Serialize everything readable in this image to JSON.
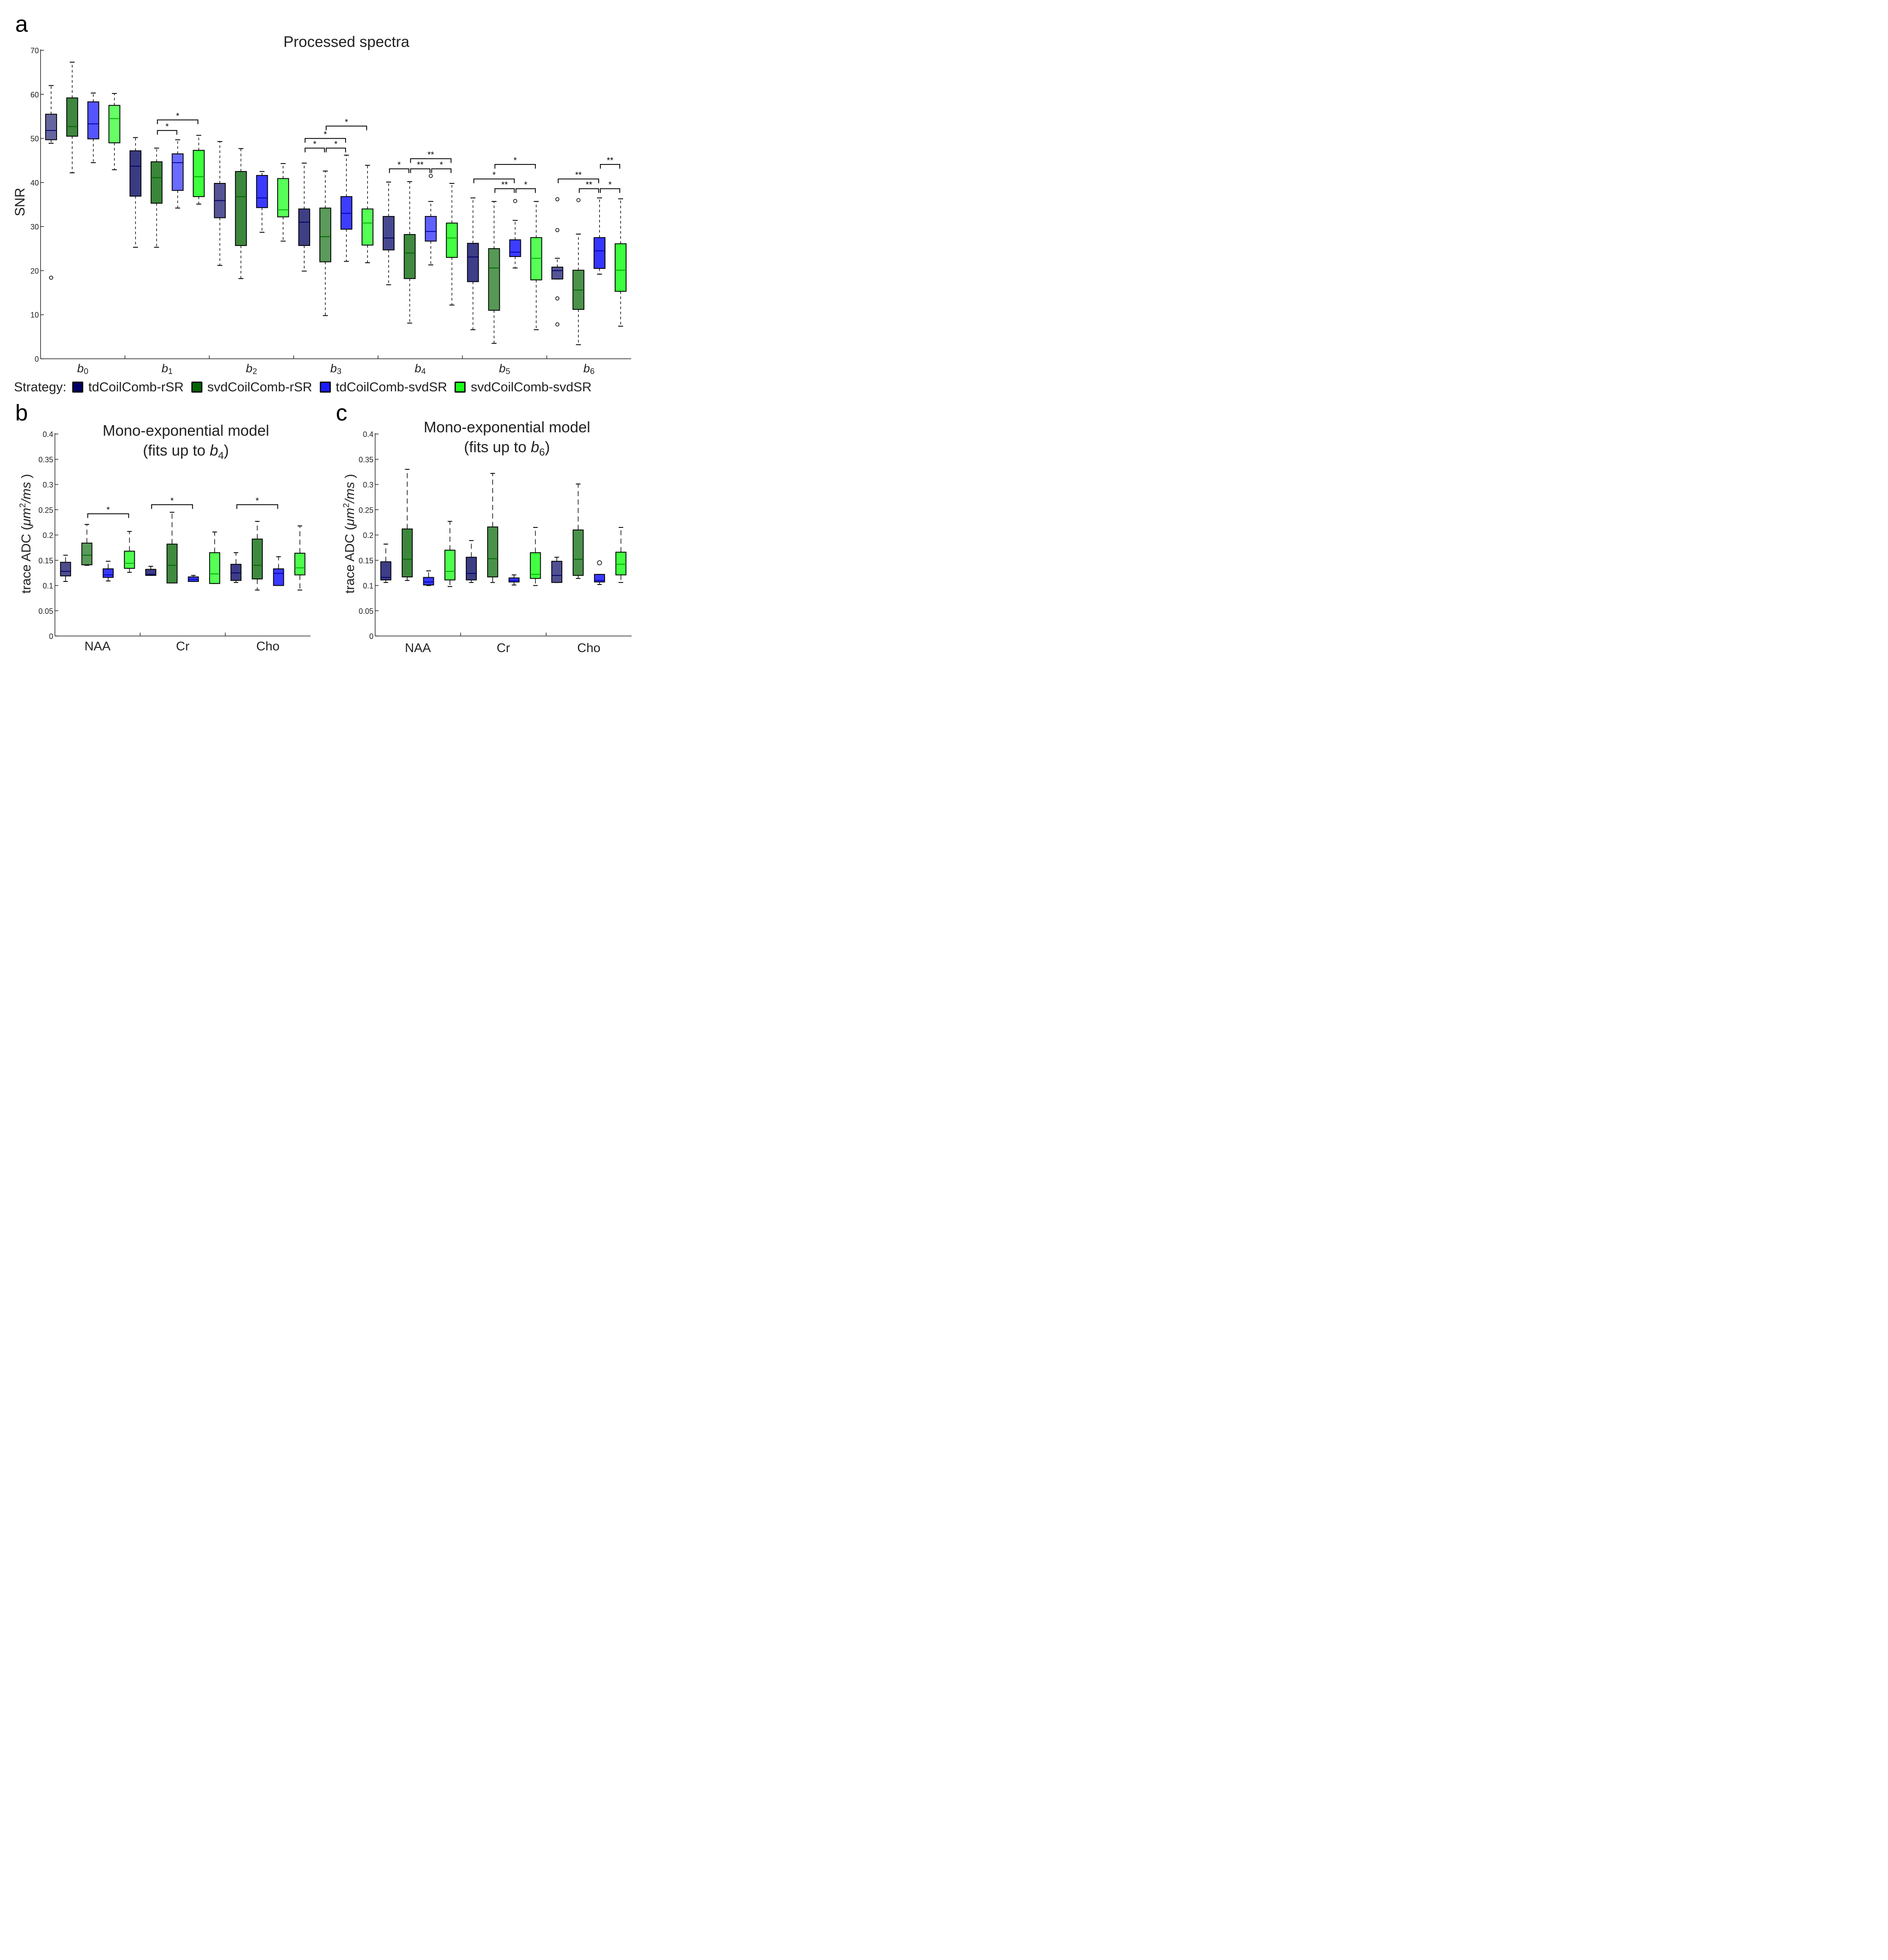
{
  "panels_labels": {
    "a": "a",
    "b": "b",
    "c": "c"
  },
  "legend": {
    "title": "Strategy:",
    "items": [
      {
        "label": "tdCoilComb-rSR",
        "color": "#000066"
      },
      {
        "label": "svdCoilComb-rSR",
        "color": "#006600"
      },
      {
        "label": "tdCoilComb-svdSR",
        "color": "#1a1aff"
      },
      {
        "label": "svdCoilComb-svdSR",
        "color": "#1aff1a"
      }
    ]
  },
  "chart_data": [
    {
      "id": "a",
      "type": "box",
      "title": "Processed spectra",
      "xlabel": "",
      "ylabel": "SNR",
      "ylim": [
        0,
        70
      ],
      "yticks": [
        0,
        10,
        20,
        30,
        40,
        50,
        60,
        70
      ],
      "categories": [
        {
          "base": "b",
          "sub": "0"
        },
        {
          "base": "b",
          "sub": "1"
        },
        {
          "base": "b",
          "sub": "2"
        },
        {
          "base": "b",
          "sub": "3"
        },
        {
          "base": "b",
          "sub": "4"
        },
        {
          "base": "b",
          "sub": "5"
        },
        {
          "base": "b",
          "sub": "6"
        }
      ],
      "series_names": [
        "tdCoilComb-rSR",
        "svdCoilComb-rSR",
        "tdCoilComb-svdSR",
        "svdCoilComb-svdSR"
      ],
      "boxes": [
        [
          {
            "min": 48.9,
            "q1": 49.7,
            "median": 51.8,
            "q3": 55.5,
            "max": 62.0,
            "outliers": [
              18.4
            ]
          },
          {
            "min": 42.2,
            "q1": 50.5,
            "median": 52.7,
            "q3": 59.2,
            "max": 67.3,
            "outliers": []
          },
          {
            "min": 44.5,
            "q1": 49.9,
            "median": 53.3,
            "q3": 58.3,
            "max": 60.3,
            "outliers": []
          },
          {
            "min": 42.9,
            "q1": 49.0,
            "median": 54.5,
            "q3": 57.5,
            "max": 60.2,
            "outliers": []
          }
        ],
        [
          {
            "min": 25.3,
            "q1": 36.9,
            "median": 43.7,
            "q3": 47.2,
            "max": 50.2,
            "outliers": []
          },
          {
            "min": 25.3,
            "q1": 35.3,
            "median": 41.1,
            "q3": 44.7,
            "max": 47.8,
            "outliers": []
          },
          {
            "min": 34.2,
            "q1": 38.2,
            "median": 44.5,
            "q3": 46.5,
            "max": 49.7,
            "outliers": []
          },
          {
            "min": 35.1,
            "q1": 36.8,
            "median": 41.3,
            "q3": 47.3,
            "max": 50.7,
            "outliers": []
          }
        ],
        [
          {
            "min": 21.2,
            "q1": 32.0,
            "median": 35.9,
            "q3": 39.8,
            "max": 49.3,
            "outliers": []
          },
          {
            "min": 18.2,
            "q1": 25.7,
            "median": 36.8,
            "q3": 42.5,
            "max": 47.7,
            "outliers": []
          },
          {
            "min": 28.7,
            "q1": 34.3,
            "median": 36.5,
            "q3": 41.6,
            "max": 42.5,
            "outliers": []
          },
          {
            "min": 26.7,
            "q1": 32.2,
            "median": 33.8,
            "q3": 40.9,
            "max": 44.3,
            "outliers": []
          }
        ],
        [
          {
            "min": 19.9,
            "q1": 25.7,
            "median": 31.0,
            "q3": 34.0,
            "max": 44.4,
            "outliers": []
          },
          {
            "min": 9.8,
            "q1": 22.0,
            "median": 27.7,
            "q3": 34.2,
            "max": 42.6,
            "outliers": []
          },
          {
            "min": 22.1,
            "q1": 29.4,
            "median": 33.0,
            "q3": 36.8,
            "max": 46.2,
            "outliers": []
          },
          {
            "min": 21.8,
            "q1": 25.8,
            "median": 30.8,
            "q3": 34.0,
            "max": 43.9,
            "outliers": []
          }
        ],
        [
          {
            "min": 16.8,
            "q1": 24.7,
            "median": 27.4,
            "q3": 32.3,
            "max": 40.1,
            "outliers": []
          },
          {
            "min": 8.1,
            "q1": 18.2,
            "median": 24.0,
            "q3": 28.2,
            "max": 40.2,
            "outliers": []
          },
          {
            "min": 21.3,
            "q1": 26.7,
            "median": 28.9,
            "q3": 32.3,
            "max": 35.7,
            "outliers": [
              41.5
            ]
          },
          {
            "min": 12.2,
            "q1": 23.0,
            "median": 27.4,
            "q3": 30.8,
            "max": 39.8,
            "outliers": []
          }
        ],
        [
          {
            "min": 6.6,
            "q1": 17.5,
            "median": 23.1,
            "q3": 26.2,
            "max": 36.5,
            "outliers": []
          },
          {
            "min": 3.5,
            "q1": 11.0,
            "median": 20.6,
            "q3": 25.0,
            "max": 35.7,
            "outliers": []
          },
          {
            "min": 20.6,
            "q1": 23.2,
            "median": 24.2,
            "q3": 27.0,
            "max": 31.4,
            "outliers": [
              35.8
            ]
          },
          {
            "min": 6.6,
            "q1": 17.9,
            "median": 22.8,
            "q3": 27.5,
            "max": 35.7,
            "outliers": []
          }
        ],
        [
          {
            "min": 18.1,
            "q1": 18.1,
            "median": 20.0,
            "q3": 20.8,
            "max": 22.8,
            "outliers": [
              36.2,
              29.2,
              13.7,
              7.8
            ]
          },
          {
            "min": 3.2,
            "q1": 11.2,
            "median": 15.6,
            "q3": 20.1,
            "max": 28.3,
            "outliers": [
              36.0
            ]
          },
          {
            "min": 19.2,
            "q1": 20.5,
            "median": 24.5,
            "q3": 27.5,
            "max": 36.5,
            "outliers": []
          },
          {
            "min": 7.4,
            "q1": 15.3,
            "median": 20.1,
            "q3": 26.1,
            "max": 36.3,
            "outliers": []
          }
        ]
      ],
      "significance": [
        {
          "cat": 1,
          "from": 1,
          "to": 2,
          "y": 51.8,
          "label": "*"
        },
        {
          "cat": 1,
          "from": 1,
          "to": 3,
          "y": 54.2,
          "label": "*"
        },
        {
          "cat": 3,
          "from": 0,
          "to": 1,
          "y": 47.8,
          "label": "*"
        },
        {
          "cat": 3,
          "from": 1,
          "to": 2,
          "y": 47.8,
          "label": "*"
        },
        {
          "cat": 3,
          "from": 0,
          "to": 2,
          "y": 50.0,
          "label": "*"
        },
        {
          "cat": 3,
          "from": 1,
          "to": 3,
          "y": 52.8,
          "label": "*"
        },
        {
          "cat": 4,
          "from": 0,
          "to": 1,
          "y": 43.1,
          "label": "*"
        },
        {
          "cat": 4,
          "from": 1,
          "to": 2,
          "y": 43.1,
          "label": "**"
        },
        {
          "cat": 4,
          "from": 2,
          "to": 3,
          "y": 43.1,
          "label": "*"
        },
        {
          "cat": 4,
          "from": 1,
          "to": 3,
          "y": 45.4,
          "label": "**"
        },
        {
          "cat": 5,
          "from": 0,
          "to": 2,
          "y": 40.8,
          "label": "*"
        },
        {
          "cat": 5,
          "from": 1,
          "to": 2,
          "y": 38.6,
          "label": "**"
        },
        {
          "cat": 5,
          "from": 2,
          "to": 3,
          "y": 38.6,
          "label": "*"
        },
        {
          "cat": 5,
          "from": 1,
          "to": 3,
          "y": 44.1,
          "label": "*"
        },
        {
          "cat": 6,
          "from": 0,
          "to": 2,
          "y": 40.8,
          "label": "**"
        },
        {
          "cat": 6,
          "from": 1,
          "to": 2,
          "y": 38.6,
          "label": "**"
        },
        {
          "cat": 6,
          "from": 2,
          "to": 3,
          "y": 38.6,
          "label": "*"
        },
        {
          "cat": 6,
          "from": 2,
          "to": 3,
          "y": 44.1,
          "label": "**",
          "from_alt": 2,
          "to_alt": 3
        }
      ]
    },
    {
      "id": "b",
      "type": "box",
      "title_line1": "Mono-exponential model",
      "title_line2_prefix": "(fits up to ",
      "title_line2_var": "b",
      "title_line2_sub": "4",
      "title_line2_suffix": ")",
      "ylabel_prefix": "trace ADC (",
      "ylabel_unit": "μm",
      "ylabel_sup": "2",
      "ylabel_unit2": "/ms",
      "ylabel_suffix": " )",
      "ylim": [
        0,
        0.4
      ],
      "yticks": [
        "0",
        "0.05",
        "0.1",
        "0.15",
        "0.2",
        "0.25",
        "0.3",
        "0.35",
        "0.4"
      ],
      "categories": [
        "NAA",
        "Cr",
        "Cho"
      ],
      "boxes": [
        [
          {
            "min": 0.108,
            "q1": 0.119,
            "median": 0.128,
            "q3": 0.146,
            "max": 0.16,
            "outliers": []
          },
          {
            "min": 0.14,
            "q1": 0.141,
            "median": 0.16,
            "q3": 0.184,
            "max": 0.221,
            "outliers": []
          },
          {
            "min": 0.109,
            "q1": 0.116,
            "median": 0.121,
            "q3": 0.133,
            "max": 0.148,
            "outliers": []
          },
          {
            "min": 0.126,
            "q1": 0.134,
            "median": 0.144,
            "q3": 0.168,
            "max": 0.207,
            "outliers": []
          }
        ],
        [
          {
            "min": 0.12,
            "q1": 0.12,
            "median": 0.122,
            "q3": 0.132,
            "max": 0.138,
            "outliers": []
          },
          {
            "min": 0.105,
            "q1": 0.105,
            "median": 0.14,
            "q3": 0.182,
            "max": 0.245,
            "outliers": []
          },
          {
            "min": 0.108,
            "q1": 0.108,
            "median": 0.112,
            "q3": 0.117,
            "max": 0.12,
            "outliers": []
          },
          {
            "min": 0.104,
            "q1": 0.104,
            "median": 0.123,
            "q3": 0.165,
            "max": 0.206,
            "outliers": []
          }
        ],
        [
          {
            "min": 0.106,
            "q1": 0.11,
            "median": 0.125,
            "q3": 0.142,
            "max": 0.165,
            "outliers": []
          },
          {
            "min": 0.091,
            "q1": 0.113,
            "median": 0.14,
            "q3": 0.192,
            "max": 0.227,
            "outliers": []
          },
          {
            "min": 0.1,
            "q1": 0.1,
            "median": 0.124,
            "q3": 0.133,
            "max": 0.157,
            "outliers": []
          },
          {
            "min": 0.091,
            "q1": 0.121,
            "median": 0.135,
            "q3": 0.164,
            "max": 0.218,
            "outliers": []
          }
        ]
      ],
      "significance": [
        {
          "cat": 0,
          "from": 1,
          "to": 3,
          "y": 0.242,
          "label": "*"
        },
        {
          "cat": 1,
          "from": 0,
          "to": 2,
          "y": 0.26,
          "label": "*"
        },
        {
          "cat": 2,
          "from": 0,
          "to": 2,
          "y": 0.26,
          "label": "*"
        }
      ]
    },
    {
      "id": "c",
      "type": "box",
      "title_line1": "Mono-exponential model",
      "title_line2_prefix": "(fits up to ",
      "title_line2_var": "b",
      "title_line2_sub": "6",
      "title_line2_suffix": ")",
      "ylabel_prefix": "trace ADC (",
      "ylabel_unit": "μm",
      "ylabel_sup": "2",
      "ylabel_unit2": "/ms",
      "ylabel_suffix": " )",
      "ylim": [
        0,
        0.4
      ],
      "yticks": [
        "0",
        "0.05",
        "0.1",
        "0.15",
        "0.2",
        "0.25",
        "0.3",
        "0.35",
        "0.4"
      ],
      "categories": [
        "NAA",
        "Cr",
        "Cho"
      ],
      "boxes": [
        [
          {
            "min": 0.106,
            "q1": 0.111,
            "median": 0.116,
            "q3": 0.147,
            "max": 0.182,
            "outliers": []
          },
          {
            "min": 0.11,
            "q1": 0.117,
            "median": 0.152,
            "q3": 0.212,
            "max": 0.33,
            "outliers": []
          },
          {
            "min": 0.1,
            "q1": 0.101,
            "median": 0.107,
            "q3": 0.116,
            "max": 0.129,
            "outliers": []
          },
          {
            "min": 0.098,
            "q1": 0.111,
            "median": 0.128,
            "q3": 0.17,
            "max": 0.227,
            "outliers": []
          }
        ],
        [
          {
            "min": 0.106,
            "q1": 0.111,
            "median": 0.124,
            "q3": 0.156,
            "max": 0.189,
            "outliers": []
          },
          {
            "min": 0.106,
            "q1": 0.117,
            "median": 0.153,
            "q3": 0.216,
            "max": 0.322,
            "outliers": []
          },
          {
            "min": 0.101,
            "q1": 0.107,
            "median": 0.11,
            "q3": 0.115,
            "max": 0.121,
            "outliers": []
          },
          {
            "min": 0.1,
            "q1": 0.114,
            "median": 0.122,
            "q3": 0.165,
            "max": 0.215,
            "outliers": []
          }
        ],
        [
          {
            "min": 0.106,
            "q1": 0.106,
            "median": 0.12,
            "q3": 0.148,
            "max": 0.156,
            "outliers": []
          },
          {
            "min": 0.114,
            "q1": 0.12,
            "median": 0.152,
            "q3": 0.21,
            "max": 0.301,
            "outliers": []
          },
          {
            "min": 0.102,
            "q1": 0.107,
            "median": 0.11,
            "q3": 0.122,
            "max": 0.122,
            "outliers": [
              0.145
            ]
          },
          {
            "min": 0.106,
            "q1": 0.121,
            "median": 0.142,
            "q3": 0.166,
            "max": 0.215,
            "outliers": []
          }
        ]
      ],
      "significance": []
    }
  ],
  "box_fills": {
    "a": [
      [
        "#66669e",
        "#3f873f",
        "#5555ff",
        "#66ff66"
      ],
      [
        "#3b3b84",
        "#3a873a",
        "#6b6bff",
        "#3dff3d"
      ],
      [
        "#545496",
        "#3c873c",
        "#3a3aff",
        "#59ff59"
      ],
      [
        "#3f3f86",
        "#5a9a5a",
        "#3d3dff",
        "#55ff55"
      ],
      [
        "#484890",
        "#3f8a3f",
        "#6060ff",
        "#42ff42"
      ],
      [
        "#3d3d88",
        "#559955",
        "#3d3dff",
        "#55ff55"
      ],
      [
        "#555596",
        "#4a924a",
        "#3535ff",
        "#3dff3d"
      ]
    ],
    "b": [
      [
        "#4c4c8e",
        "#5a9a5a",
        "#3838ff",
        "#4dff4d"
      ],
      [
        "#3d3d88",
        "#3f8a3f",
        "#3a3aff",
        "#55ff55"
      ],
      [
        "#3d3d86",
        "#3f8a3f",
        "#3a3aff",
        "#4dff4d"
      ]
    ],
    "c": [
      [
        "#3d3d88",
        "#3d873d",
        "#3a3aff",
        "#4dff4d"
      ],
      [
        "#3d3d86",
        "#4a924a",
        "#3a3aff",
        "#42ff42"
      ],
      [
        "#505092",
        "#4a924a",
        "#3a3aff",
        "#42ff42"
      ]
    ]
  },
  "median_colors": [
    "#000066",
    "#006600",
    "#0000aa",
    "#00aa00"
  ]
}
